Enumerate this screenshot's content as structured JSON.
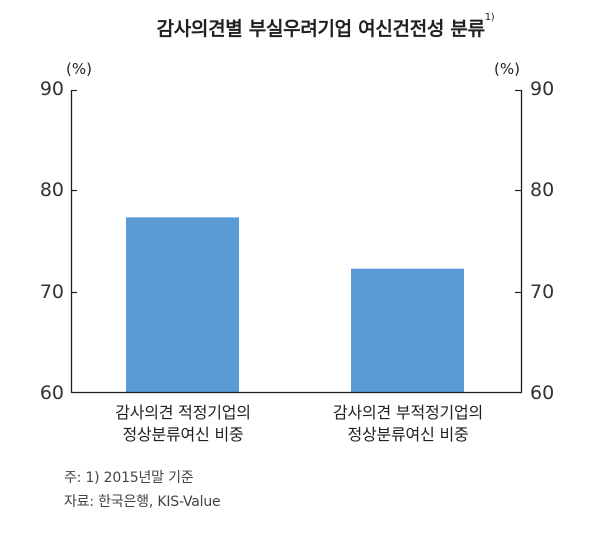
{
  "title": {
    "text": "감사의견별 부실우려기업 여신건전성 분류",
    "superscript": "1)"
  },
  "axes": {
    "left_unit": "(%)",
    "right_unit": "(%)",
    "ticks": [
      "90",
      "80",
      "70",
      "60"
    ]
  },
  "categories": [
    {
      "line1": "감사의견 적정기업의",
      "line2": "정상분류여신 비중"
    },
    {
      "line1": "감사의견 부적정기업의",
      "line2": "정상분류여신 비중"
    }
  ],
  "footnotes": {
    "note": "주: 1) 2015년말 기준",
    "source": "자료: 한국은행, KIS-Value"
  },
  "colors": {
    "bar": "#5b9bd5",
    "axis": "#231f20"
  },
  "chart_data": {
    "type": "bar",
    "title": "감사의견별 부실우려기업 여신건전성 분류",
    "title_superscript": "1)",
    "categories": [
      "감사의견 적정기업의 정상분류여신 비중",
      "감사의견 부적정기업의 정상분류여신 비중"
    ],
    "values": [
      77.4,
      72.3
    ],
    "xlabel": "",
    "ylabel": "(%)",
    "ylabel_right": "(%)",
    "ylim": [
      60,
      90
    ],
    "yticks": [
      60,
      70,
      80,
      90
    ],
    "grid": false,
    "legend": null,
    "dual_axis": true,
    "notes": [
      "주: 1) 2015년말 기준",
      "자료: 한국은행, KIS-Value"
    ]
  }
}
